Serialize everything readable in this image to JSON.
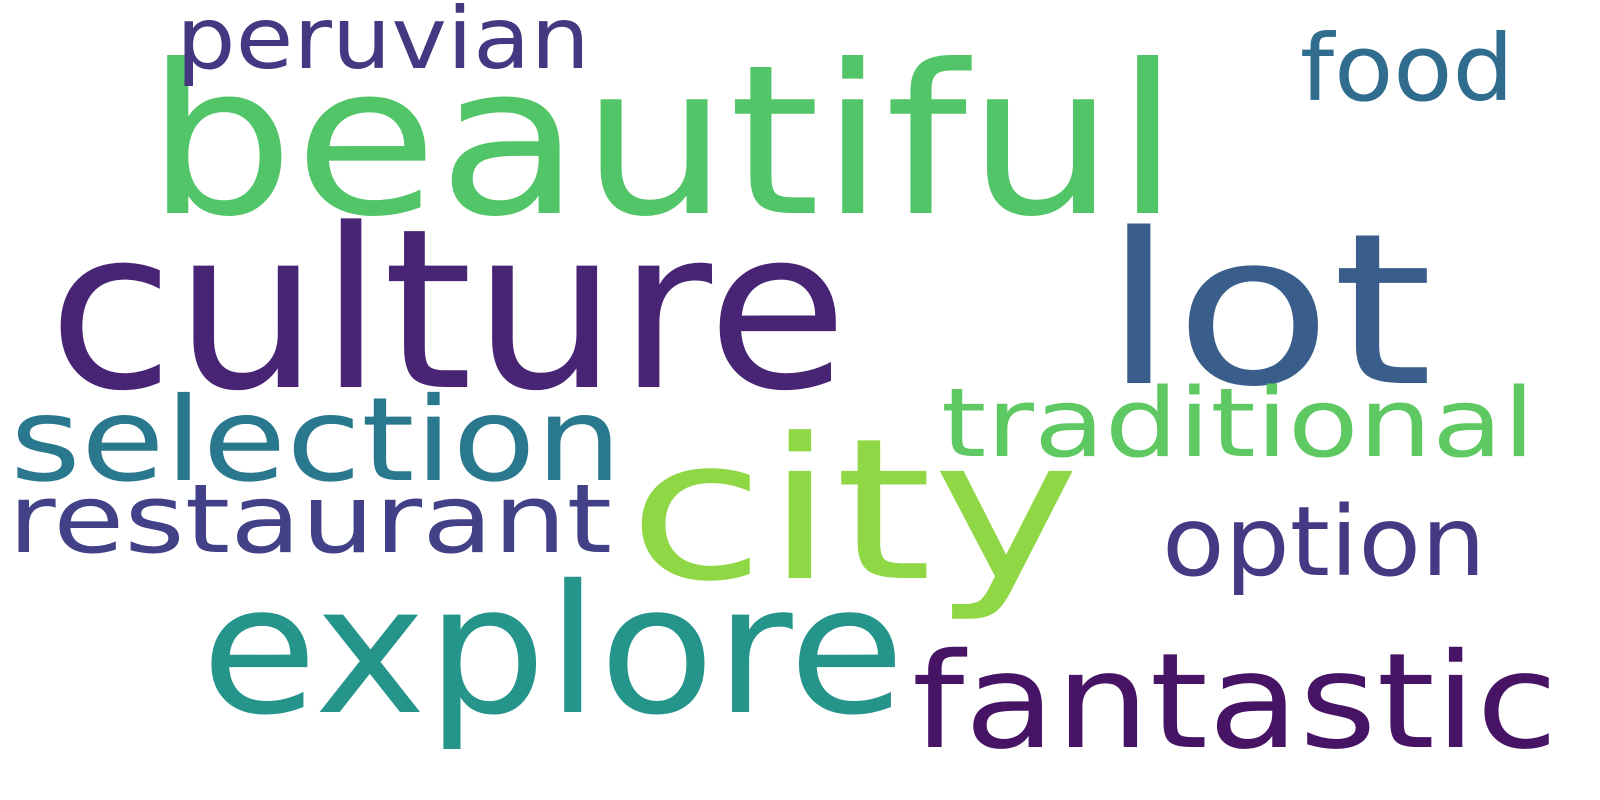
{
  "word_cloud": {
    "background": "#ffffff",
    "words": [
      {
        "text": "beautiful",
        "color": "#52c569"
      },
      {
        "text": "culture",
        "color": "#482475"
      },
      {
        "text": "lot",
        "color": "#3a5e8c"
      },
      {
        "text": "city",
        "color": "#8fd744"
      },
      {
        "text": "explore",
        "color": "#25948b"
      },
      {
        "text": "fantastic",
        "color": "#471365"
      },
      {
        "text": "selection",
        "color": "#2a788e"
      },
      {
        "text": "restaurant",
        "color": "#424086"
      },
      {
        "text": "traditional",
        "color": "#5ec962"
      },
      {
        "text": "option",
        "color": "#443983"
      },
      {
        "text": "peruvian",
        "color": "#453781"
      },
      {
        "text": "food",
        "color": "#2f6c8e"
      }
    ]
  }
}
